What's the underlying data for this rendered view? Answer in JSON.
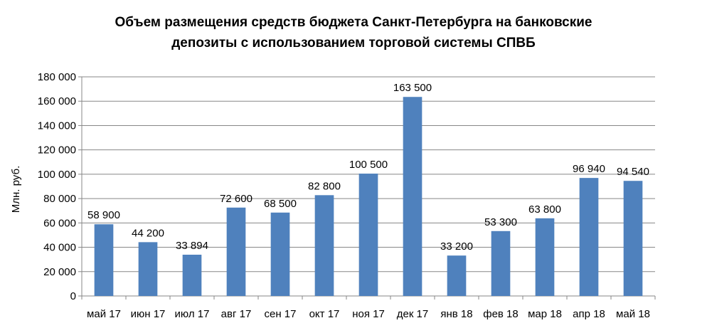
{
  "chart_data": {
    "type": "bar",
    "title_lines": [
      "Объем размещения средств бюджета Санкт-Петербурга на банковские",
      "депозиты с использованием торговой системы СПВБ"
    ],
    "ylabel": "Млн. руб.",
    "xlabel": "",
    "ylim": [
      0,
      180000
    ],
    "ytick_step": 20000,
    "ytick_labels": [
      "0",
      "20 000",
      "40 000",
      "60 000",
      "80 000",
      "100 000",
      "120 000",
      "140 000",
      "160 000",
      "180 000"
    ],
    "grid": true,
    "legend": "none",
    "categories": [
      "май 17",
      "июн 17",
      "июл 17",
      "авг 17",
      "сен 17",
      "окт 17",
      "ноя 17",
      "дек 17",
      "янв 18",
      "фев 18",
      "мар 18",
      "апр 18",
      "май 18"
    ],
    "values": [
      58900,
      44200,
      33894,
      72600,
      68500,
      82800,
      100500,
      163500,
      33200,
      53300,
      63800,
      96940,
      94540
    ],
    "value_labels": [
      "58 900",
      "44 200",
      "33 894",
      "72 600",
      "68 500",
      "82 800",
      "100 500",
      "163 500",
      "33 200",
      "53 300",
      "63 800",
      "96 940",
      "94 540"
    ],
    "colors": {
      "bar": "#4f81bd",
      "grid": "#878787",
      "axis": "#878787"
    }
  }
}
